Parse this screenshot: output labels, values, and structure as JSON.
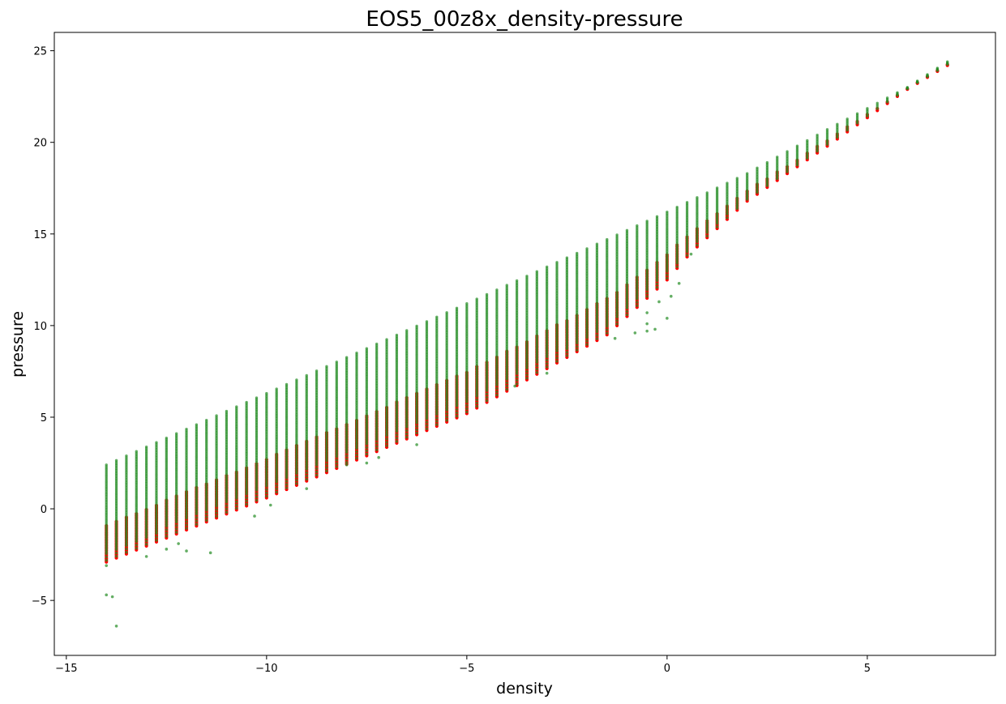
{
  "chart_data": {
    "type": "scatter",
    "title": "EOS5_00z8x_density-pressure",
    "xlabel": "density",
    "ylabel": "pressure",
    "xlim": [
      -15.3,
      8.2
    ],
    "ylim": [
      -8.0,
      26.0
    ],
    "xticks": [
      -15,
      -10,
      -5,
      0,
      5
    ],
    "xtick_labels": [
      "−15",
      "−10",
      "−5",
      "0",
      "5"
    ],
    "yticks": [
      -5,
      0,
      5,
      10,
      15,
      20,
      25
    ],
    "ytick_labels": [
      "−5",
      "0",
      "5",
      "10",
      "15",
      "20",
      "25"
    ],
    "grid": false,
    "legend": "none",
    "grid_structure": {
      "density_min": -14.0,
      "density_max": 7.0,
      "density_step": 0.25,
      "top_envelope": [
        [
          -14.0,
          2.4
        ],
        [
          -10.0,
          6.3
        ],
        [
          -5.0,
          11.2
        ],
        [
          0.0,
          16.2
        ],
        [
          2.0,
          18.3
        ],
        [
          4.0,
          20.7
        ],
        [
          6.0,
          23.0
        ],
        [
          7.0,
          24.4
        ]
      ],
      "bottom_envelope": [
        [
          -14.0,
          -2.9
        ],
        [
          -10.0,
          0.6
        ],
        [
          -5.0,
          5.2
        ],
        [
          -1.5,
          9.5
        ],
        [
          0.0,
          12.5
        ],
        [
          0.6,
          14.0
        ],
        [
          2.0,
          16.8
        ],
        [
          4.0,
          19.8
        ],
        [
          6.0,
          22.9
        ],
        [
          7.0,
          24.2
        ]
      ]
    },
    "series": [
      {
        "color": "#ff0000",
        "marker": "circle",
        "note_ref": "red reference band, concentrated at the lower portion of each density column",
        "outliers": []
      },
      {
        "color": "#228b22",
        "marker": "circle",
        "opacity": 0.7,
        "outliers": [
          [
            -14.0,
            -4.7
          ],
          [
            -13.85,
            -4.8
          ],
          [
            -13.75,
            -6.4
          ],
          [
            -14.0,
            -3.1
          ],
          [
            -13.0,
            -2.6
          ],
          [
            -12.5,
            -2.2
          ],
          [
            -12.2,
            -1.9
          ],
          [
            -12.0,
            -2.3
          ],
          [
            -11.4,
            -2.4
          ],
          [
            -10.3,
            -0.4
          ],
          [
            -9.9,
            0.2
          ],
          [
            -9.0,
            1.1
          ],
          [
            -8.0,
            2.4
          ],
          [
            -7.5,
            2.5
          ],
          [
            -7.2,
            2.8
          ],
          [
            -6.25,
            3.5
          ],
          [
            -3.0,
            7.4
          ],
          [
            -3.8,
            6.7
          ],
          [
            -1.3,
            9.3
          ],
          [
            -0.8,
            9.6
          ],
          [
            -0.5,
            10.1
          ],
          [
            -0.5,
            10.7
          ],
          [
            -0.3,
            9.8
          ],
          [
            -0.5,
            9.7
          ],
          [
            0.0,
            10.4
          ],
          [
            -0.2,
            11.3
          ],
          [
            0.1,
            11.6
          ],
          [
            0.3,
            12.3
          ],
          [
            0.6,
            13.9
          ]
        ]
      }
    ]
  }
}
